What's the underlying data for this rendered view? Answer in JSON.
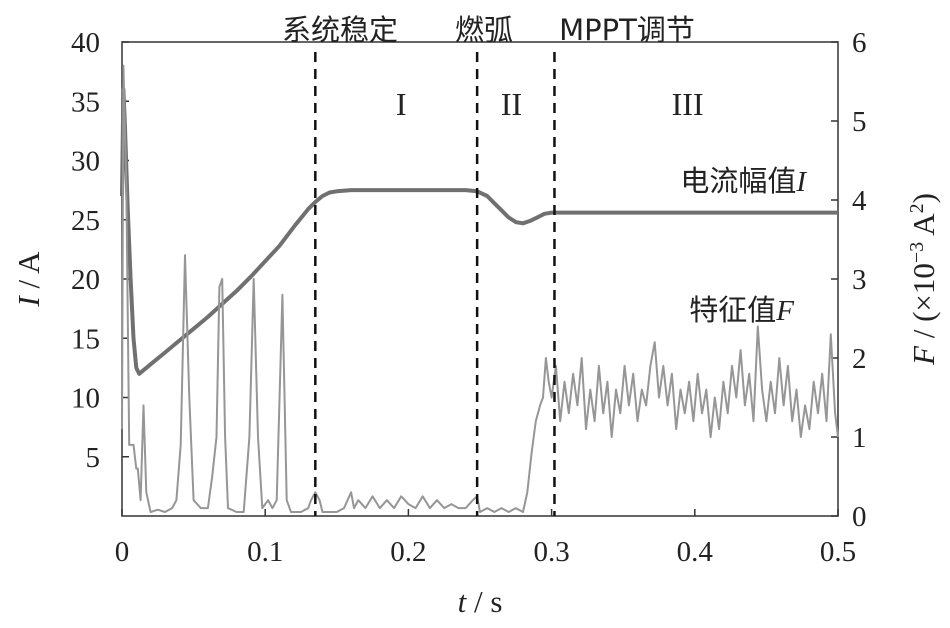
{
  "chart_data": {
    "type": "line",
    "x": {
      "label_parts": [
        "t",
        " / s"
      ],
      "lim": [
        0,
        0.5
      ],
      "ticks": [
        0,
        0.1,
        0.2,
        0.3,
        0.4,
        0.5
      ],
      "tick_labels": [
        "0",
        "0.1",
        "0.2",
        "0.3",
        "0.4",
        "0.5"
      ]
    },
    "y_left": {
      "label_parts": [
        "I",
        " / A"
      ],
      "lim": [
        0,
        40
      ],
      "ticks": [
        5,
        10,
        15,
        20,
        25,
        30,
        35,
        40
      ],
      "tick_labels": [
        "5",
        "10",
        "15",
        "20",
        "25",
        "30",
        "35",
        "40"
      ]
    },
    "y_right": {
      "label_parts": [
        "F",
        " / (×10",
        "−3",
        " A",
        "2",
        ")"
      ],
      "lim": [
        0,
        6
      ],
      "ticks": [
        0,
        1,
        2,
        3,
        4,
        5,
        6
      ],
      "tick_labels": [
        "0",
        "1",
        "2",
        "3",
        "4",
        "5",
        "6"
      ]
    },
    "grid": false,
    "events": [
      {
        "x": 0.135,
        "label": "系统稳定"
      },
      {
        "x": 0.248,
        "label": "燃弧"
      },
      {
        "x": 0.302,
        "label": "MPPT调节"
      }
    ],
    "regions": [
      {
        "x": 0.195,
        "label": "I"
      },
      {
        "x": 0.272,
        "label": "II"
      },
      {
        "x": 0.395,
        "label": "III"
      }
    ],
    "series": [
      {
        "name": "电流幅值",
        "name_symbol": "I",
        "axis": "left",
        "color": "#707070",
        "points": [
          [
            0.0,
            27
          ],
          [
            0.001,
            36
          ],
          [
            0.002,
            33
          ],
          [
            0.004,
            26
          ],
          [
            0.006,
            20
          ],
          [
            0.008,
            15
          ],
          [
            0.01,
            12.5
          ],
          [
            0.012,
            12
          ],
          [
            0.015,
            12.3
          ],
          [
            0.02,
            12.8
          ],
          [
            0.03,
            13.8
          ],
          [
            0.04,
            14.8
          ],
          [
            0.05,
            15.8
          ],
          [
            0.06,
            16.8
          ],
          [
            0.07,
            17.9
          ],
          [
            0.08,
            19.0
          ],
          [
            0.09,
            20.2
          ],
          [
            0.1,
            21.5
          ],
          [
            0.11,
            22.8
          ],
          [
            0.12,
            24.4
          ],
          [
            0.13,
            25.9
          ],
          [
            0.135,
            26.5
          ],
          [
            0.14,
            27.0
          ],
          [
            0.145,
            27.3
          ],
          [
            0.15,
            27.4
          ],
          [
            0.16,
            27.5
          ],
          [
            0.18,
            27.5
          ],
          [
            0.2,
            27.5
          ],
          [
            0.22,
            27.5
          ],
          [
            0.24,
            27.5
          ],
          [
            0.248,
            27.4
          ],
          [
            0.255,
            27.0
          ],
          [
            0.26,
            26.4
          ],
          [
            0.265,
            25.8
          ],
          [
            0.27,
            25.2
          ],
          [
            0.275,
            24.8
          ],
          [
            0.28,
            24.7
          ],
          [
            0.285,
            24.9
          ],
          [
            0.29,
            25.2
          ],
          [
            0.295,
            25.5
          ],
          [
            0.3,
            25.6
          ],
          [
            0.31,
            25.6
          ],
          [
            0.35,
            25.6
          ],
          [
            0.4,
            25.6
          ],
          [
            0.45,
            25.6
          ],
          [
            0.5,
            25.6
          ]
        ]
      },
      {
        "name": "特征值",
        "name_symbol": "F",
        "axis": "right",
        "color": "#969696",
        "points": [
          [
            0.0,
            1.1
          ],
          [
            0.001,
            5.7
          ],
          [
            0.003,
            4.2
          ],
          [
            0.005,
            0.9
          ],
          [
            0.008,
            0.9
          ],
          [
            0.01,
            0.6
          ],
          [
            0.011,
            0.6
          ],
          [
            0.013,
            0.2
          ],
          [
            0.015,
            1.4
          ],
          [
            0.017,
            0.3
          ],
          [
            0.02,
            0.05
          ],
          [
            0.025,
            0.08
          ],
          [
            0.03,
            0.05
          ],
          [
            0.035,
            0.1
          ],
          [
            0.038,
            0.2
          ],
          [
            0.041,
            0.9
          ],
          [
            0.044,
            3.3
          ],
          [
            0.047,
            1.5
          ],
          [
            0.05,
            0.2
          ],
          [
            0.055,
            0.1
          ],
          [
            0.06,
            0.1
          ],
          [
            0.063,
            0.5
          ],
          [
            0.066,
            1.0
          ],
          [
            0.068,
            2.9
          ],
          [
            0.07,
            3.0
          ],
          [
            0.072,
            1.0
          ],
          [
            0.074,
            0.1
          ],
          [
            0.08,
            0.05
          ],
          [
            0.085,
            0.05
          ],
          [
            0.089,
            1.0
          ],
          [
            0.092,
            3.0
          ],
          [
            0.095,
            1.0
          ],
          [
            0.098,
            0.1
          ],
          [
            0.102,
            0.2
          ],
          [
            0.105,
            0.1
          ],
          [
            0.108,
            0.2
          ],
          [
            0.112,
            2.8
          ],
          [
            0.115,
            0.2
          ],
          [
            0.118,
            0.05
          ],
          [
            0.125,
            0.05
          ],
          [
            0.13,
            0.1
          ],
          [
            0.132,
            0.2
          ],
          [
            0.135,
            0.3
          ],
          [
            0.138,
            0.2
          ],
          [
            0.14,
            0.05
          ],
          [
            0.15,
            0.05
          ],
          [
            0.155,
            0.1
          ],
          [
            0.16,
            0.3
          ],
          [
            0.162,
            0.1
          ],
          [
            0.165,
            0.2
          ],
          [
            0.17,
            0.1
          ],
          [
            0.175,
            0.25
          ],
          [
            0.18,
            0.1
          ],
          [
            0.185,
            0.2
          ],
          [
            0.19,
            0.1
          ],
          [
            0.195,
            0.25
          ],
          [
            0.2,
            0.15
          ],
          [
            0.205,
            0.1
          ],
          [
            0.21,
            0.25
          ],
          [
            0.215,
            0.1
          ],
          [
            0.22,
            0.2
          ],
          [
            0.225,
            0.1
          ],
          [
            0.23,
            0.15
          ],
          [
            0.235,
            0.1
          ],
          [
            0.24,
            0.1
          ],
          [
            0.245,
            0.2
          ],
          [
            0.248,
            0.25
          ],
          [
            0.25,
            0.05
          ],
          [
            0.255,
            0.1
          ],
          [
            0.26,
            0.05
          ],
          [
            0.265,
            0.1
          ],
          [
            0.27,
            0.05
          ],
          [
            0.275,
            0.1
          ],
          [
            0.28,
            0.05
          ],
          [
            0.283,
            0.3
          ],
          [
            0.286,
            0.8
          ],
          [
            0.289,
            1.2
          ],
          [
            0.292,
            1.4
          ],
          [
            0.294,
            1.5
          ],
          [
            0.296,
            2.0
          ],
          [
            0.298,
            1.7
          ],
          [
            0.3,
            1.5
          ],
          [
            0.303,
            1.9
          ],
          [
            0.306,
            1.2
          ],
          [
            0.309,
            1.7
          ],
          [
            0.312,
            1.3
          ],
          [
            0.315,
            1.8
          ],
          [
            0.318,
            1.4
          ],
          [
            0.321,
            2.0
          ],
          [
            0.324,
            1.1
          ],
          [
            0.327,
            1.6
          ],
          [
            0.33,
            1.2
          ],
          [
            0.333,
            1.9
          ],
          [
            0.336,
            1.3
          ],
          [
            0.339,
            1.7
          ],
          [
            0.342,
            1.0
          ],
          [
            0.345,
            1.6
          ],
          [
            0.348,
            1.3
          ],
          [
            0.351,
            1.9
          ],
          [
            0.354,
            1.4
          ],
          [
            0.357,
            1.8
          ],
          [
            0.36,
            1.2
          ],
          [
            0.363,
            1.6
          ],
          [
            0.366,
            1.4
          ],
          [
            0.369,
            1.9
          ],
          [
            0.372,
            2.2
          ],
          [
            0.375,
            1.5
          ],
          [
            0.378,
            1.9
          ],
          [
            0.381,
            1.4
          ],
          [
            0.384,
            1.8
          ],
          [
            0.387,
            1.1
          ],
          [
            0.39,
            1.6
          ],
          [
            0.393,
            1.3
          ],
          [
            0.396,
            1.7
          ],
          [
            0.399,
            1.2
          ],
          [
            0.402,
            1.8
          ],
          [
            0.405,
            1.3
          ],
          [
            0.408,
            1.6
          ],
          [
            0.411,
            1.0
          ],
          [
            0.414,
            1.5
          ],
          [
            0.417,
            1.1
          ],
          [
            0.42,
            1.7
          ],
          [
            0.423,
            1.3
          ],
          [
            0.426,
            1.9
          ],
          [
            0.429,
            1.5
          ],
          [
            0.432,
            2.1
          ],
          [
            0.435,
            1.4
          ],
          [
            0.438,
            1.8
          ],
          [
            0.441,
            1.2
          ],
          [
            0.444,
            2.4
          ],
          [
            0.447,
            1.6
          ],
          [
            0.45,
            1.2
          ],
          [
            0.453,
            1.7
          ],
          [
            0.456,
            1.3
          ],
          [
            0.459,
            2.0
          ],
          [
            0.462,
            1.4
          ],
          [
            0.465,
            1.9
          ],
          [
            0.468,
            1.2
          ],
          [
            0.471,
            1.6
          ],
          [
            0.474,
            1.0
          ],
          [
            0.477,
            1.4
          ],
          [
            0.48,
            1.1
          ],
          [
            0.483,
            1.7
          ],
          [
            0.486,
            1.3
          ],
          [
            0.489,
            1.8
          ],
          [
            0.492,
            1.2
          ],
          [
            0.495,
            2.3
          ],
          [
            0.498,
            1.3
          ],
          [
            0.5,
            1.0
          ]
        ]
      }
    ]
  }
}
